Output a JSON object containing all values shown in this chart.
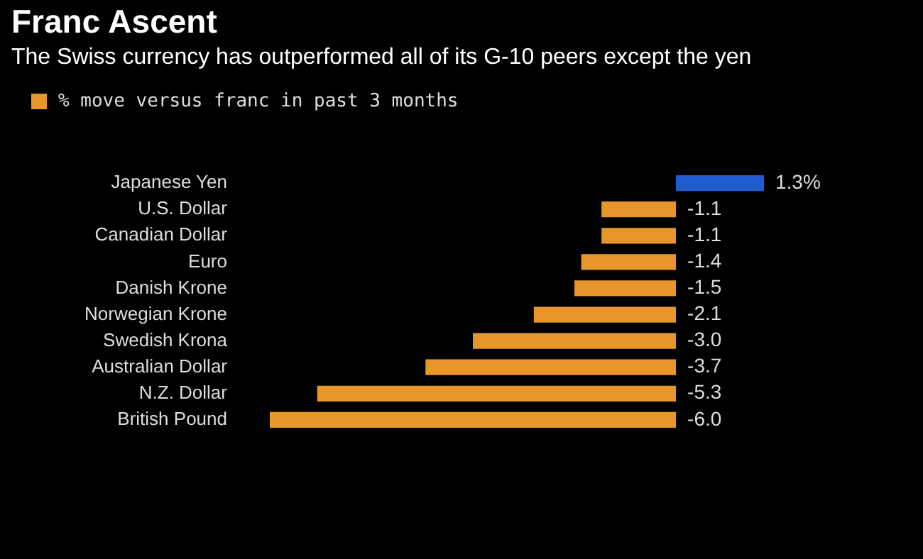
{
  "chart_data": {
    "type": "bar",
    "orientation": "horizontal",
    "title": "Franc Ascent",
    "subtitle": "The Swiss currency has outperformed all of its G-10 peers except the yen",
    "categories": [
      "Japanese Yen",
      "U.S. Dollar",
      "Canadian Dollar",
      "Euro",
      "Danish Krone",
      "Norwegian Krone",
      "Swedish Krona",
      "Australian Dollar",
      "N.Z. Dollar",
      "British Pound"
    ],
    "series": [
      {
        "name": "% move versus franc in past 3 months",
        "color": "#e8962a",
        "colors": [
          "#1f5bd1",
          "#e8962a",
          "#e8962a",
          "#e8962a",
          "#e8962a",
          "#e8962a",
          "#e8962a",
          "#e8962a",
          "#e8962a",
          "#e8962a"
        ],
        "values": [
          1.3,
          -1.1,
          -1.1,
          -1.4,
          -1.5,
          -2.1,
          -3.0,
          -3.7,
          -5.3,
          -6.0
        ],
        "value_labels": [
          "1.3%",
          "-1.1",
          "-1.1",
          "-1.4",
          "-1.5",
          "-2.1",
          "-3.0",
          "-3.7",
          "-5.3",
          "-6.0"
        ]
      }
    ],
    "xlim": [
      -6,
      1.3
    ],
    "legend": "top left"
  }
}
